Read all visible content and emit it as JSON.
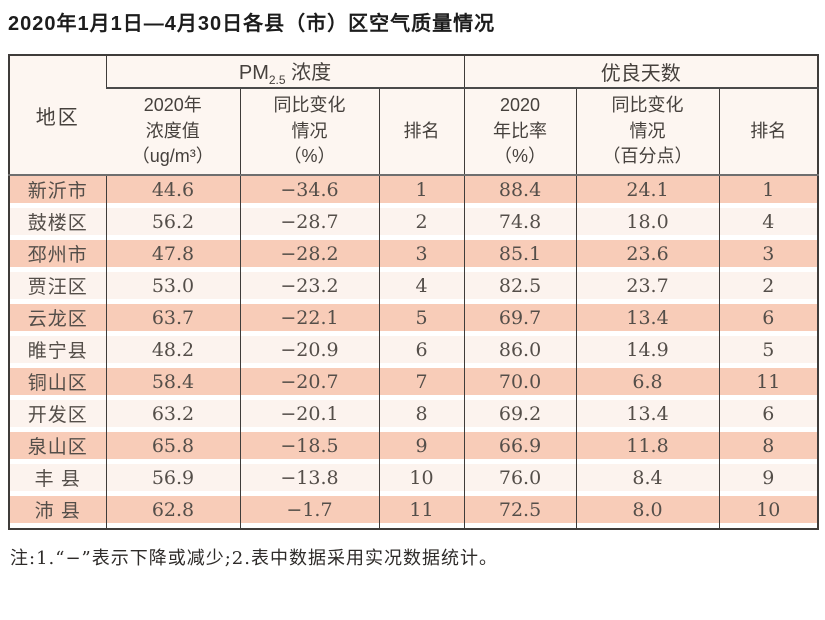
{
  "title": "2020年1月1日—4月30日各县（市）区空气质量情况",
  "footer_note": "注:1.“−”表示下降或减少;2.表中数据采用实况数据统计。",
  "table": {
    "region_header": "地区",
    "groups": {
      "pm": {
        "prefix": "PM",
        "sub": "2.5",
        "suffix": " 浓度"
      },
      "days": {
        "label": "优良天数"
      }
    },
    "subheaders": {
      "pm_value": "2020年\n浓度值\n（ug/m³）",
      "pm_change": "同比变化\n情况\n（%）",
      "pm_rank": "排名",
      "days_rate": "2020\n年比率\n（%）",
      "days_change": "同比变化\n情况\n（百分点）",
      "days_rank": "排名"
    },
    "rows": [
      {
        "region": "新沂市",
        "pm_value": "44.6",
        "pm_change": "−34.6",
        "pm_rank": "1",
        "days_rate": "88.4",
        "days_change": "24.1",
        "days_rank": "1"
      },
      {
        "region": "鼓楼区",
        "pm_value": "56.2",
        "pm_change": "−28.7",
        "pm_rank": "2",
        "days_rate": "74.8",
        "days_change": "18.0",
        "days_rank": "4"
      },
      {
        "region": "邳州市",
        "pm_value": "47.8",
        "pm_change": "−28.2",
        "pm_rank": "3",
        "days_rate": "85.1",
        "days_change": "23.6",
        "days_rank": "3"
      },
      {
        "region": "贾汪区",
        "pm_value": "53.0",
        "pm_change": "−23.2",
        "pm_rank": "4",
        "days_rate": "82.5",
        "days_change": "23.7",
        "days_rank": "2"
      },
      {
        "region": "云龙区",
        "pm_value": "63.7",
        "pm_change": "−22.1",
        "pm_rank": "5",
        "days_rate": "69.7",
        "days_change": "13.4",
        "days_rank": "6"
      },
      {
        "region": "睢宁县",
        "pm_value": "48.2",
        "pm_change": "−20.9",
        "pm_rank": "6",
        "days_rate": "86.0",
        "days_change": "14.9",
        "days_rank": "5"
      },
      {
        "region": "铜山区",
        "pm_value": "58.4",
        "pm_change": "−20.7",
        "pm_rank": "7",
        "days_rate": "70.0",
        "days_change": "6.8",
        "days_rank": "11"
      },
      {
        "region": "开发区",
        "pm_value": "63.2",
        "pm_change": "−20.1",
        "pm_rank": "8",
        "days_rate": "69.2",
        "days_change": "13.4",
        "days_rank": "6"
      },
      {
        "region": "泉山区",
        "pm_value": "65.8",
        "pm_change": "−18.5",
        "pm_rank": "9",
        "days_rate": "66.9",
        "days_change": "11.8",
        "days_rank": "8"
      },
      {
        "region": "丰 县",
        "pm_value": "56.9",
        "pm_change": "−13.8",
        "pm_rank": "10",
        "days_rate": "76.0",
        "days_change": "8.4",
        "days_rank": "9"
      },
      {
        "region": "沛 县",
        "pm_value": "62.8",
        "pm_change": "−1.7",
        "pm_rank": "11",
        "days_rate": "72.5",
        "days_change": "8.0",
        "days_rank": "10"
      }
    ]
  },
  "colors": {
    "row_odd_bg": "#f8ccb8",
    "row_even_bg": "#fcf3ee",
    "header_bg": "#fdf6f1",
    "border_dark": "#3f3c3a",
    "header_sep": "#6e6e6e",
    "text": "#544e49",
    "title_color": "#1c1c1c"
  }
}
